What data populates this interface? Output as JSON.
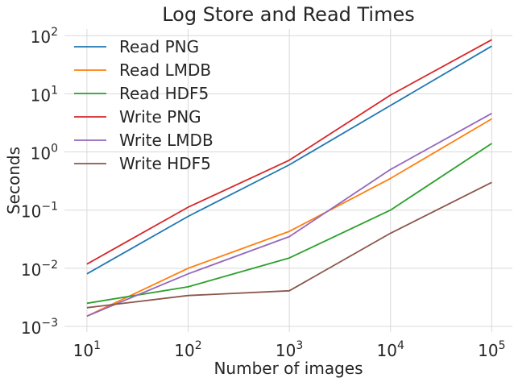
{
  "chart_data": {
    "type": "line",
    "title": "Log Store and Read Times",
    "xlabel": "Number of images",
    "ylabel": "Seconds",
    "xscale": "log",
    "yscale": "log",
    "x": [
      10,
      100,
      1000,
      10000,
      100000
    ],
    "xlim": [
      6,
      160000
    ],
    "ylim": [
      0.0008,
      130
    ],
    "x_tick_values": [
      10,
      100,
      1000,
      10000,
      100000
    ],
    "x_tick_labels": [
      {
        "base": "10",
        "exp": "1"
      },
      {
        "base": "10",
        "exp": "2"
      },
      {
        "base": "10",
        "exp": "3"
      },
      {
        "base": "10",
        "exp": "4"
      },
      {
        "base": "10",
        "exp": "5"
      }
    ],
    "y_tick_values": [
      0.001,
      0.01,
      0.1,
      1,
      10,
      100
    ],
    "y_tick_labels": [
      {
        "base": "10",
        "exp": "−3"
      },
      {
        "base": "10",
        "exp": "−2"
      },
      {
        "base": "10",
        "exp": "−1"
      },
      {
        "base": "10",
        "exp": "0"
      },
      {
        "base": "10",
        "exp": "1"
      },
      {
        "base": "10",
        "exp": "2"
      }
    ],
    "grid": true,
    "legend_position": "upper-left",
    "series": [
      {
        "name": "Read PNG",
        "color": "#1f77b4",
        "values": [
          0.008,
          0.078,
          0.6,
          6.3,
          66
        ]
      },
      {
        "name": "Read LMDB",
        "color": "#ff7f0e",
        "values": [
          0.0015,
          0.01,
          0.043,
          0.35,
          3.7
        ]
      },
      {
        "name": "Read HDF5",
        "color": "#2ca02c",
        "values": [
          0.0025,
          0.0048,
          0.015,
          0.1,
          1.4
        ]
      },
      {
        "name": "Write PNG",
        "color": "#d62728",
        "values": [
          0.0118,
          0.112,
          0.72,
          9.5,
          85
        ]
      },
      {
        "name": "Write LMDB",
        "color": "#9467bd",
        "values": [
          0.0015,
          0.008,
          0.035,
          0.5,
          4.6
        ]
      },
      {
        "name": "Write HDF5",
        "color": "#8c564b",
        "values": [
          0.0021,
          0.0034,
          0.0041,
          0.04,
          0.3
        ]
      }
    ]
  }
}
